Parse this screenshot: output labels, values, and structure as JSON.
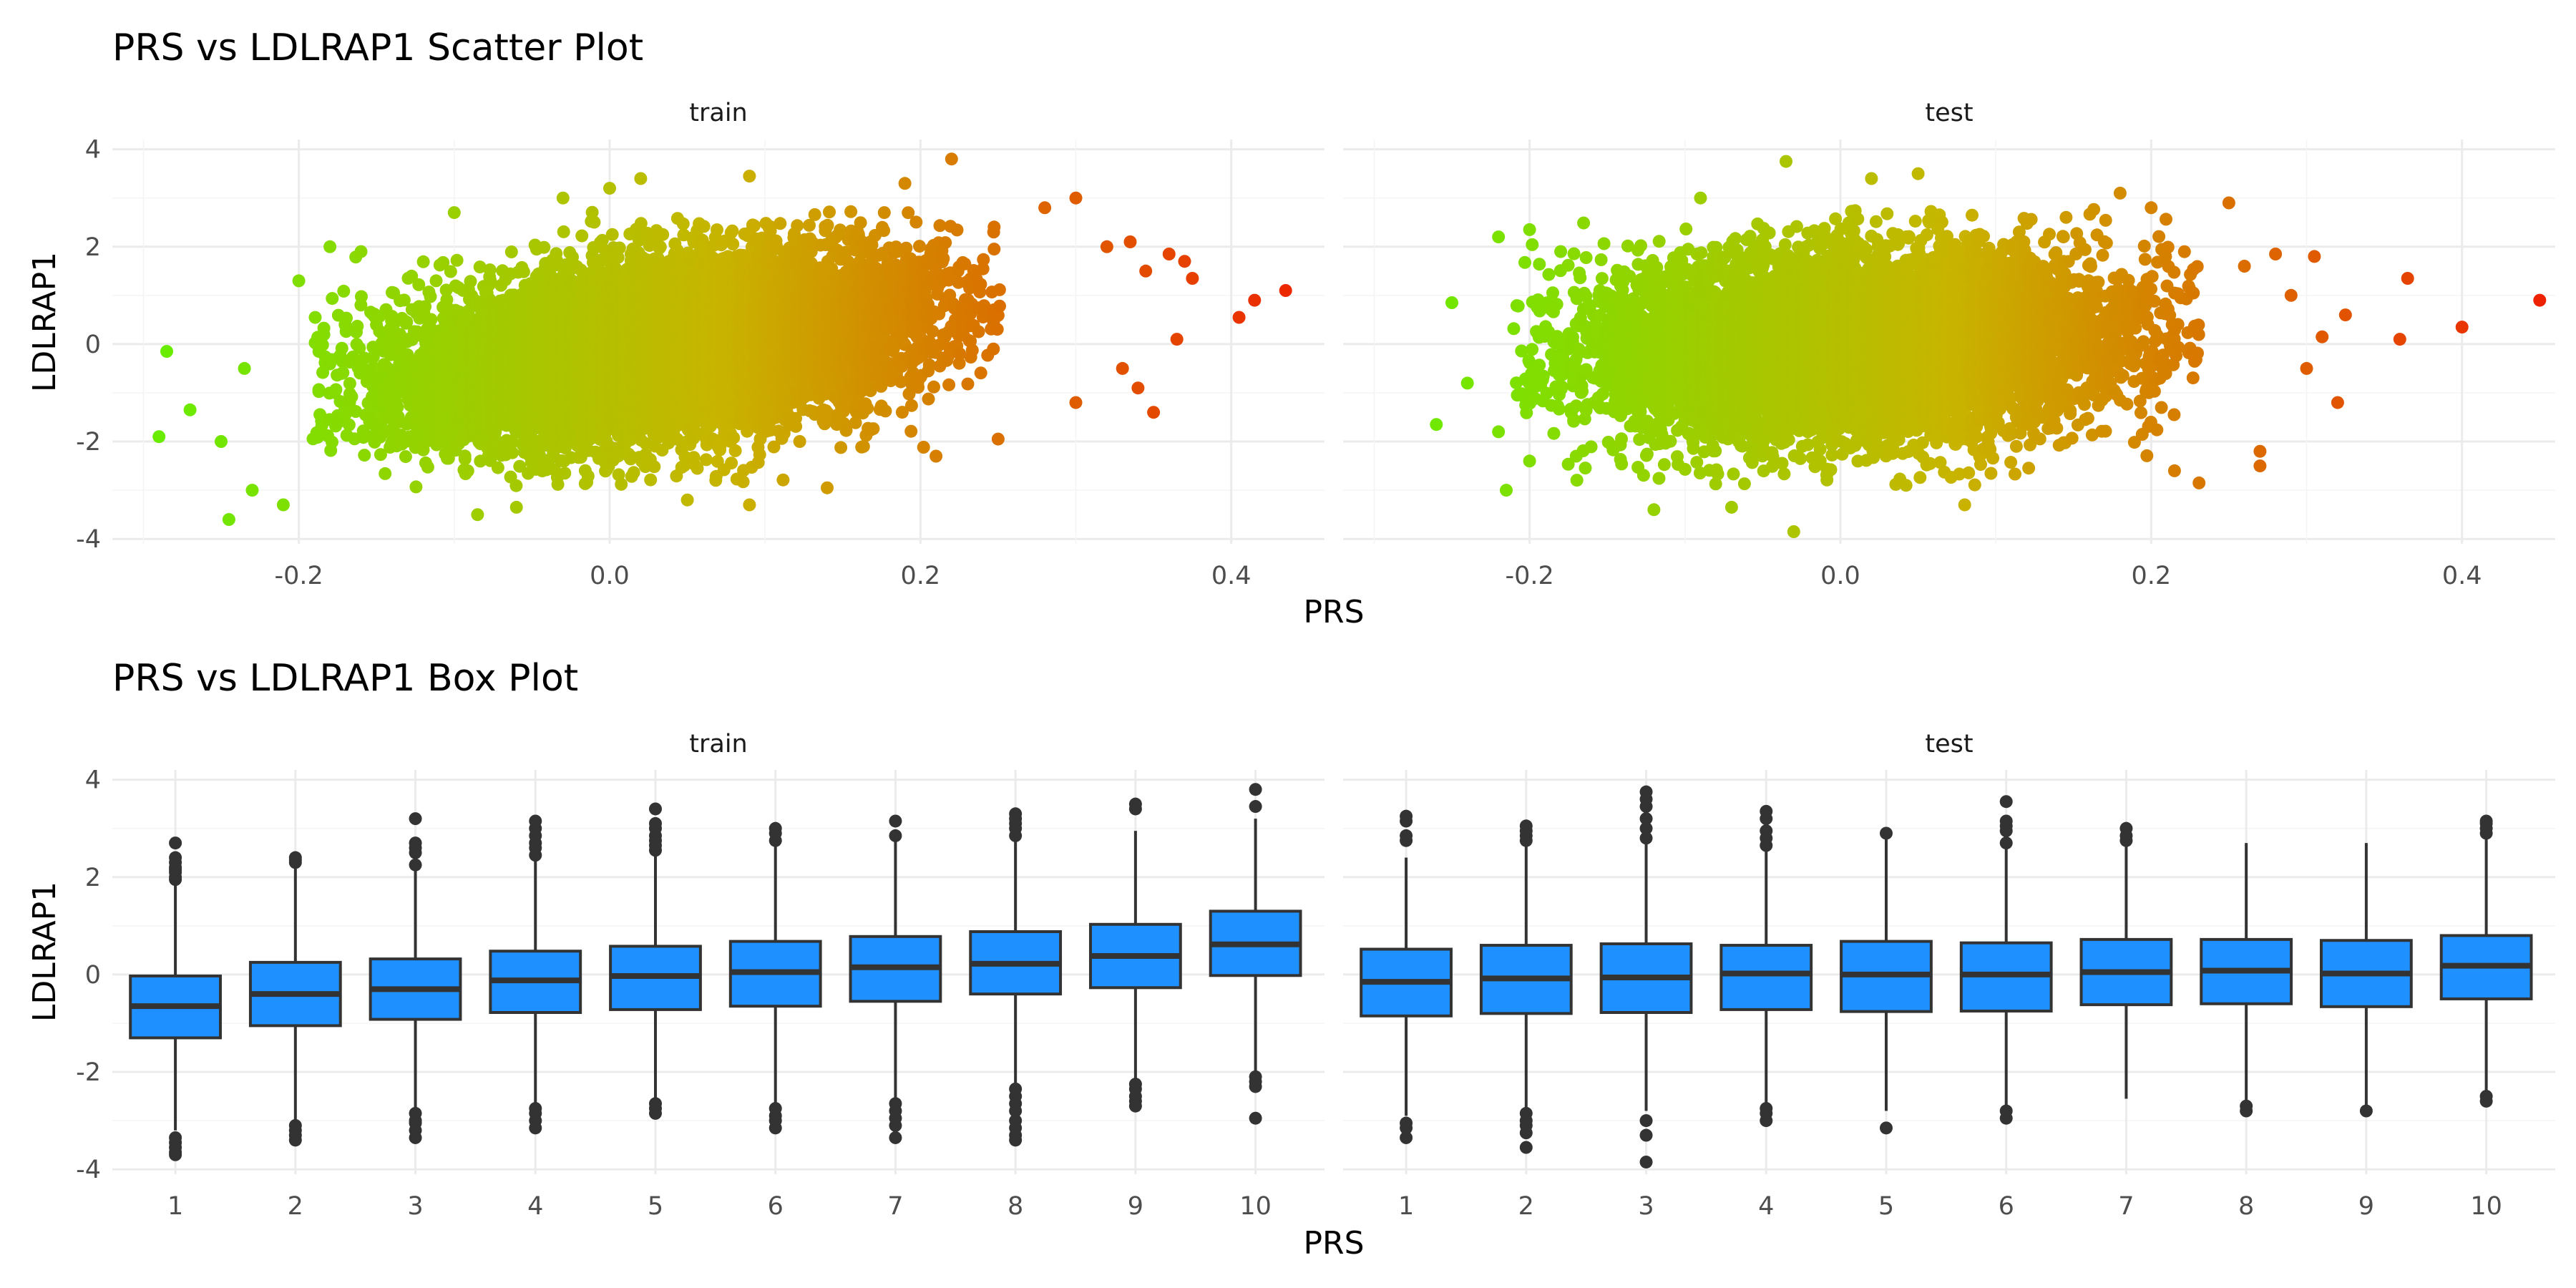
{
  "chart_data": [
    {
      "type": "scatter",
      "title": "PRS vs LDLRAP1 Scatter Plot",
      "xlabel": "PRS",
      "ylabel": "LDLRAP1",
      "color_scale": {
        "low": "#66ee00",
        "mid": "#c8b400",
        "high": "#ee2200",
        "range": [
          -0.3,
          0.45
        ]
      },
      "grid": true,
      "facets": [
        {
          "name": "train",
          "xlim": [
            -0.32,
            0.46
          ],
          "ylim": [
            -4.1,
            4.2
          ],
          "xticks": [
            "-0.2",
            "0.0",
            "0.2",
            "0.4"
          ],
          "xtick_values": [
            -0.2,
            0.0,
            0.2,
            0.4
          ],
          "yticks": [
            "-4",
            "-2",
            "0",
            "2",
            "4"
          ],
          "ytick_values": [
            -4,
            -2,
            0,
            2,
            4
          ],
          "cloud": {
            "x_mean": 0.03,
            "x_sd": 0.085,
            "y_mean": -0.1,
            "y_sd": 0.95,
            "correlation": 0.35,
            "n_points": 9000
          },
          "points": [
            {
              "x": -0.29,
              "y": -1.9
            },
            {
              "x": -0.285,
              "y": -0.15
            },
            {
              "x": -0.27,
              "y": -1.35
            },
            {
              "x": -0.25,
              "y": -2.0
            },
            {
              "x": -0.245,
              "y": -3.6
            },
            {
              "x": -0.235,
              "y": -0.5
            },
            {
              "x": -0.23,
              "y": -3.0
            },
            {
              "x": -0.21,
              "y": -3.3
            },
            {
              "x": -0.2,
              "y": 1.3
            },
            {
              "x": -0.18,
              "y": 2.0
            },
            {
              "x": -0.16,
              "y": 1.9
            },
            {
              "x": -0.1,
              "y": 2.7
            },
            {
              "x": -0.085,
              "y": -3.5
            },
            {
              "x": -0.06,
              "y": -3.35
            },
            {
              "x": -0.03,
              "y": 3.0
            },
            {
              "x": 0.0,
              "y": 3.2
            },
            {
              "x": 0.02,
              "y": 3.4
            },
            {
              "x": 0.05,
              "y": -3.2
            },
            {
              "x": 0.09,
              "y": 3.45
            },
            {
              "x": 0.09,
              "y": -3.3
            },
            {
              "x": 0.14,
              "y": -2.95
            },
            {
              "x": 0.19,
              "y": 3.3
            },
            {
              "x": 0.21,
              "y": -2.3
            },
            {
              "x": 0.22,
              "y": 3.8
            },
            {
              "x": 0.25,
              "y": -1.95
            },
            {
              "x": 0.28,
              "y": 2.8
            },
            {
              "x": 0.3,
              "y": 3.0
            },
            {
              "x": 0.3,
              "y": -1.2
            },
            {
              "x": 0.32,
              "y": 2.0
            },
            {
              "x": 0.33,
              "y": -0.5
            },
            {
              "x": 0.335,
              "y": 2.1
            },
            {
              "x": 0.34,
              "y": -0.9
            },
            {
              "x": 0.345,
              "y": 1.5
            },
            {
              "x": 0.35,
              "y": -1.4
            },
            {
              "x": 0.36,
              "y": 1.85
            },
            {
              "x": 0.365,
              "y": 0.1
            },
            {
              "x": 0.37,
              "y": 1.7
            },
            {
              "x": 0.375,
              "y": 1.35
            },
            {
              "x": 0.405,
              "y": 0.55
            },
            {
              "x": 0.415,
              "y": 0.9
            },
            {
              "x": 0.435,
              "y": 1.1
            }
          ]
        },
        {
          "name": "test",
          "xlim": [
            -0.32,
            0.46
          ],
          "ylim": [
            -4.1,
            4.2
          ],
          "xticks": [
            "-0.2",
            "0.0",
            "0.2",
            "0.4"
          ],
          "xtick_values": [
            -0.2,
            0.0,
            0.2,
            0.4
          ],
          "yticks": [
            "-4",
            "-2",
            "0",
            "2",
            "4"
          ],
          "ytick_values": [
            -4,
            -2,
            0,
            2,
            4
          ],
          "cloud": {
            "x_mean": 0.01,
            "x_sd": 0.085,
            "y_mean": -0.05,
            "y_sd": 0.95,
            "correlation": 0.1,
            "n_points": 7500
          },
          "points": [
            {
              "x": -0.26,
              "y": -1.65
            },
            {
              "x": -0.25,
              "y": 0.85
            },
            {
              "x": -0.24,
              "y": -0.8
            },
            {
              "x": -0.22,
              "y": 2.2
            },
            {
              "x": -0.22,
              "y": -1.8
            },
            {
              "x": -0.215,
              "y": -3.0
            },
            {
              "x": -0.2,
              "y": 2.35
            },
            {
              "x": -0.2,
              "y": -2.4
            },
            {
              "x": -0.18,
              "y": 1.9
            },
            {
              "x": -0.17,
              "y": -2.3
            },
            {
              "x": -0.12,
              "y": -3.4
            },
            {
              "x": -0.09,
              "y": 3.0
            },
            {
              "x": -0.07,
              "y": -3.35
            },
            {
              "x": -0.035,
              "y": 3.75
            },
            {
              "x": -0.03,
              "y": -3.85
            },
            {
              "x": 0.02,
              "y": 3.4
            },
            {
              "x": 0.05,
              "y": 3.5
            },
            {
              "x": 0.08,
              "y": -3.3
            },
            {
              "x": 0.18,
              "y": 3.1
            },
            {
              "x": 0.2,
              "y": 2.8
            },
            {
              "x": 0.215,
              "y": -2.6
            },
            {
              "x": 0.25,
              "y": 2.9
            },
            {
              "x": 0.26,
              "y": 1.6
            },
            {
              "x": 0.27,
              "y": -2.2
            },
            {
              "x": 0.27,
              "y": -2.5
            },
            {
              "x": 0.28,
              "y": 1.85
            },
            {
              "x": 0.29,
              "y": 1.0
            },
            {
              "x": 0.3,
              "y": -0.5
            },
            {
              "x": 0.305,
              "y": 1.8
            },
            {
              "x": 0.31,
              "y": 0.15
            },
            {
              "x": 0.32,
              "y": -1.2
            },
            {
              "x": 0.325,
              "y": 0.6
            },
            {
              "x": 0.36,
              "y": 0.1
            },
            {
              "x": 0.365,
              "y": 1.35
            },
            {
              "x": 0.4,
              "y": 0.35
            },
            {
              "x": 0.45,
              "y": 0.9
            }
          ]
        }
      ]
    },
    {
      "type": "box",
      "title": "PRS vs LDLRAP1 Box Plot",
      "xlabel": "PRS",
      "ylabel": "LDLRAP1",
      "fill_color": "#1e90ff",
      "grid": true,
      "categories": [
        "1",
        "2",
        "3",
        "4",
        "5",
        "6",
        "7",
        "8",
        "9",
        "10"
      ],
      "facets": [
        {
          "name": "train",
          "ylim": [
            -4.1,
            4.2
          ],
          "yticks": [
            "-4",
            "-2",
            "0",
            "2",
            "4"
          ],
          "ytick_values": [
            -4,
            -2,
            0,
            2,
            4
          ],
          "boxes": [
            {
              "category": "1",
              "q1": -1.3,
              "median": -0.65,
              "q3": -0.03,
              "whisker_low": -3.2,
              "whisker_high": 1.9,
              "outliers": [
                -3.35,
                -3.45,
                -3.55,
                -3.65,
                -3.7,
                1.95,
                2.0,
                2.1,
                2.15,
                2.2,
                2.3,
                2.4,
                2.7
              ]
            },
            {
              "category": "2",
              "q1": -1.05,
              "median": -0.4,
              "q3": 0.25,
              "whisker_low": -3.05,
              "whisker_high": 2.25,
              "outliers": [
                -3.1,
                -3.2,
                -3.3,
                -3.4,
                2.3,
                2.35,
                2.4
              ]
            },
            {
              "category": "3",
              "q1": -0.92,
              "median": -0.3,
              "q3": 0.32,
              "whisker_low": -2.8,
              "whisker_high": 2.2,
              "outliers": [
                -2.85,
                -3.0,
                -3.05,
                -3.2,
                -3.35,
                2.25,
                2.5,
                2.6,
                2.7,
                3.2
              ]
            },
            {
              "category": "4",
              "q1": -0.78,
              "median": -0.12,
              "q3": 0.48,
              "whisker_low": -2.7,
              "whisker_high": 2.4,
              "outliers": [
                -2.75,
                -2.85,
                -3.0,
                -3.15,
                2.45,
                2.6,
                2.7,
                2.85,
                3.0,
                3.15
              ]
            },
            {
              "category": "5",
              "q1": -0.72,
              "median": -0.03,
              "q3": 0.58,
              "whisker_low": -2.6,
              "whisker_high": 2.5,
              "outliers": [
                -2.65,
                -2.75,
                -2.85,
                2.55,
                2.65,
                2.75,
                2.85,
                3.0,
                3.1,
                3.4
              ]
            },
            {
              "category": "6",
              "q1": -0.65,
              "median": 0.05,
              "q3": 0.68,
              "whisker_low": -2.7,
              "whisker_high": 2.7,
              "outliers": [
                -2.75,
                -2.9,
                -3.0,
                -3.15,
                2.75,
                2.9,
                3.0
              ]
            },
            {
              "category": "7",
              "q1": -0.55,
              "median": 0.15,
              "q3": 0.78,
              "whisker_low": -2.6,
              "whisker_high": 2.8,
              "outliers": [
                -2.65,
                -2.8,
                -2.95,
                -3.1,
                -3.35,
                2.85,
                3.15
              ]
            },
            {
              "category": "8",
              "q1": -0.4,
              "median": 0.22,
              "q3": 0.88,
              "whisker_low": -2.3,
              "whisker_high": 2.8,
              "outliers": [
                -2.35,
                -2.5,
                -2.65,
                -2.8,
                -3.0,
                -3.15,
                -3.3,
                -3.4,
                2.85,
                3.0,
                3.1,
                3.2,
                3.3
              ]
            },
            {
              "category": "9",
              "q1": -0.27,
              "median": 0.38,
              "q3": 1.03,
              "whisker_low": -2.2,
              "whisker_high": 2.95,
              "outliers": [
                -2.25,
                -2.35,
                -2.5,
                -2.6,
                -2.7,
                3.4,
                3.5
              ]
            },
            {
              "category": "10",
              "q1": -0.02,
              "median": 0.62,
              "q3": 1.3,
              "whisker_low": -2.0,
              "whisker_high": 3.2,
              "outliers": [
                -2.1,
                -2.2,
                -2.3,
                -2.95,
                3.45,
                3.8
              ]
            }
          ]
        },
        {
          "name": "test",
          "ylim": [
            -4.1,
            4.2
          ],
          "yticks": [
            "-4",
            "-2",
            "0",
            "2",
            "4"
          ],
          "ytick_values": [
            -4,
            -2,
            0,
            2,
            4
          ],
          "boxes": [
            {
              "category": "1",
              "q1": -0.85,
              "median": -0.15,
              "q3": 0.52,
              "whisker_low": -2.9,
              "whisker_high": 2.4,
              "outliers": [
                -3.05,
                -3.15,
                -3.35,
                2.75,
                2.85,
                3.15,
                3.25
              ]
            },
            {
              "category": "2",
              "q1": -0.8,
              "median": -0.08,
              "q3": 0.6,
              "whisker_low": -2.8,
              "whisker_high": 2.7,
              "outliers": [
                -2.85,
                -3.0,
                -3.1,
                -3.25,
                -3.55,
                2.75,
                2.85,
                2.95,
                3.05
              ]
            },
            {
              "category": "3",
              "q1": -0.78,
              "median": -0.06,
              "q3": 0.63,
              "whisker_low": -2.8,
              "whisker_high": 2.75,
              "outliers": [
                -3.0,
                -3.3,
                -3.85,
                2.8,
                3.0,
                3.2,
                3.45,
                3.6,
                3.75
              ]
            },
            {
              "category": "4",
              "q1": -0.72,
              "median": 0.02,
              "q3": 0.6,
              "whisker_low": -2.7,
              "whisker_high": 2.6,
              "outliers": [
                -2.75,
                -2.85,
                -3.0,
                2.65,
                2.8,
                2.95,
                3.2,
                3.35
              ]
            },
            {
              "category": "5",
              "q1": -0.76,
              "median": 0.0,
              "q3": 0.68,
              "whisker_low": -2.8,
              "whisker_high": 2.85,
              "outliers": [
                -3.15,
                2.9
              ]
            },
            {
              "category": "6",
              "q1": -0.75,
              "median": 0.0,
              "q3": 0.65,
              "whisker_low": -2.75,
              "whisker_high": 2.6,
              "outliers": [
                -2.8,
                -2.95,
                2.7,
                2.95,
                3.05,
                3.15,
                3.55
              ]
            },
            {
              "category": "7",
              "q1": -0.62,
              "median": 0.05,
              "q3": 0.72,
              "whisker_low": -2.55,
              "whisker_high": 2.7,
              "outliers": [
                2.75,
                2.85,
                3.0
              ]
            },
            {
              "category": "8",
              "q1": -0.6,
              "median": 0.08,
              "q3": 0.72,
              "whisker_low": -2.65,
              "whisker_high": 2.7,
              "outliers": [
                -2.7,
                -2.8
              ]
            },
            {
              "category": "9",
              "q1": -0.66,
              "median": 0.02,
              "q3": 0.7,
              "whisker_low": -2.7,
              "whisker_high": 2.7,
              "outliers": [
                -2.8
              ]
            },
            {
              "category": "10",
              "q1": -0.5,
              "median": 0.18,
              "q3": 0.8,
              "whisker_low": -2.45,
              "whisker_high": 2.85,
              "outliers": [
                -2.5,
                -2.6,
                2.9,
                3.0,
                3.1,
                3.15
              ]
            }
          ]
        }
      ]
    }
  ]
}
